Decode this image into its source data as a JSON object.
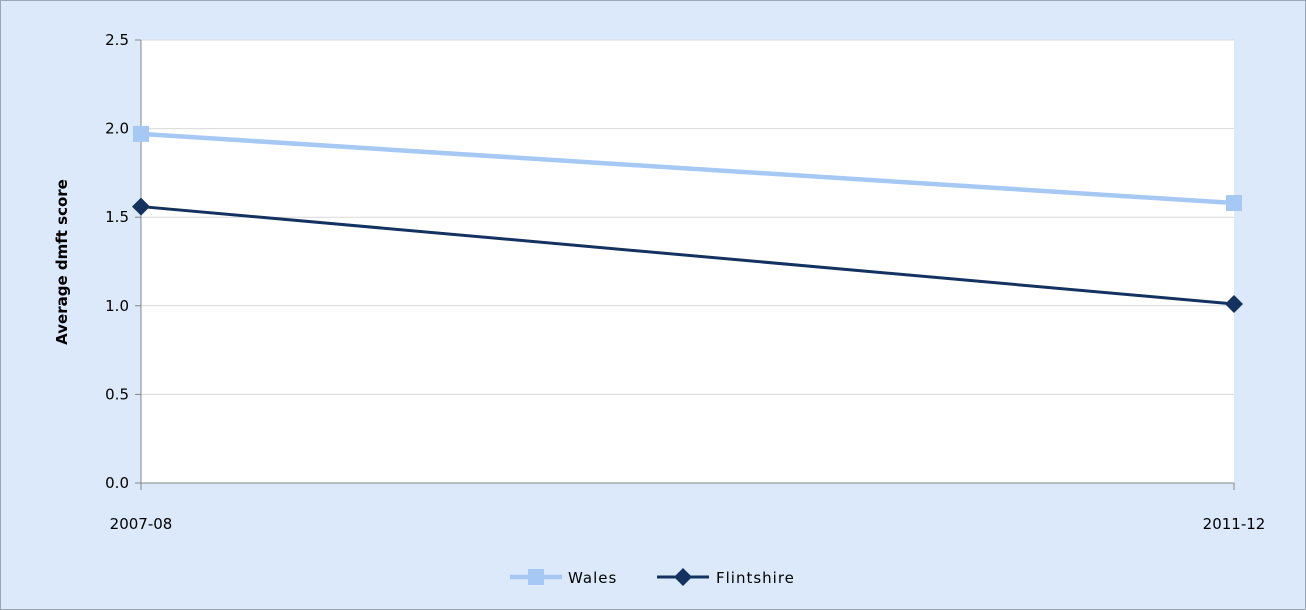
{
  "chart_data": {
    "type": "line",
    "title": "",
    "xlabel": "",
    "ylabel": "Average dmft score",
    "categories": [
      "2007-08",
      "2011-12"
    ],
    "ylim": [
      0,
      2.5
    ],
    "yticks": [
      "0.0",
      "0.5",
      "1.0",
      "1.5",
      "2.0",
      "2.5"
    ],
    "grid": true,
    "legend_position": "bottom",
    "series": [
      {
        "name": "Wales",
        "values": [
          1.97,
          1.58
        ],
        "color": "#a6c8f5",
        "marker": "square"
      },
      {
        "name": "Flintshire",
        "values": [
          1.56,
          1.01
        ],
        "color": "#13325f",
        "marker": "diamond"
      }
    ]
  }
}
